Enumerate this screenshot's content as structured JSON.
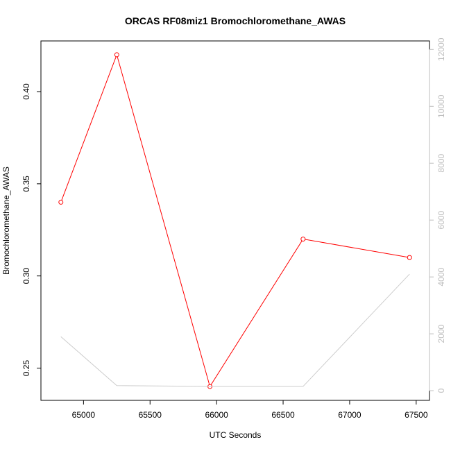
{
  "chart_data": {
    "type": "line",
    "title": "ORCAS RF08miz1 Bromochloromethane_AWAS",
    "xlabel": "UTC Seconds",
    "ylabel": "Bromochloromethane_AWAS",
    "x_ticks": [
      "65000",
      "65500",
      "66000",
      "66500",
      "67000",
      "67500"
    ],
    "y_ticks": [
      "0.25",
      "0.30",
      "0.35",
      "0.40"
    ],
    "y2_ticks": [
      "0",
      "2000",
      "4000",
      "6000",
      "8000",
      "10000",
      "12000"
    ],
    "xlim": [
      64680,
      67600
    ],
    "ylim": [
      0.2325,
      0.4275
    ],
    "y2lim": [
      -340,
      12300
    ],
    "grid": false,
    "series": [
      {
        "axis": "left",
        "color": "#ff0000",
        "marker": "open-circle",
        "x": [
          64830,
          65250,
          65950,
          66650,
          67450
        ],
        "y": [
          0.34,
          0.42,
          0.24,
          0.32,
          0.31
        ]
      },
      {
        "axis": "right",
        "color": "#cccccc",
        "marker": "none",
        "x": [
          64830,
          65250,
          65950,
          66650,
          67450
        ],
        "y": [
          1900,
          180,
          150,
          150,
          4100
        ]
      }
    ]
  }
}
